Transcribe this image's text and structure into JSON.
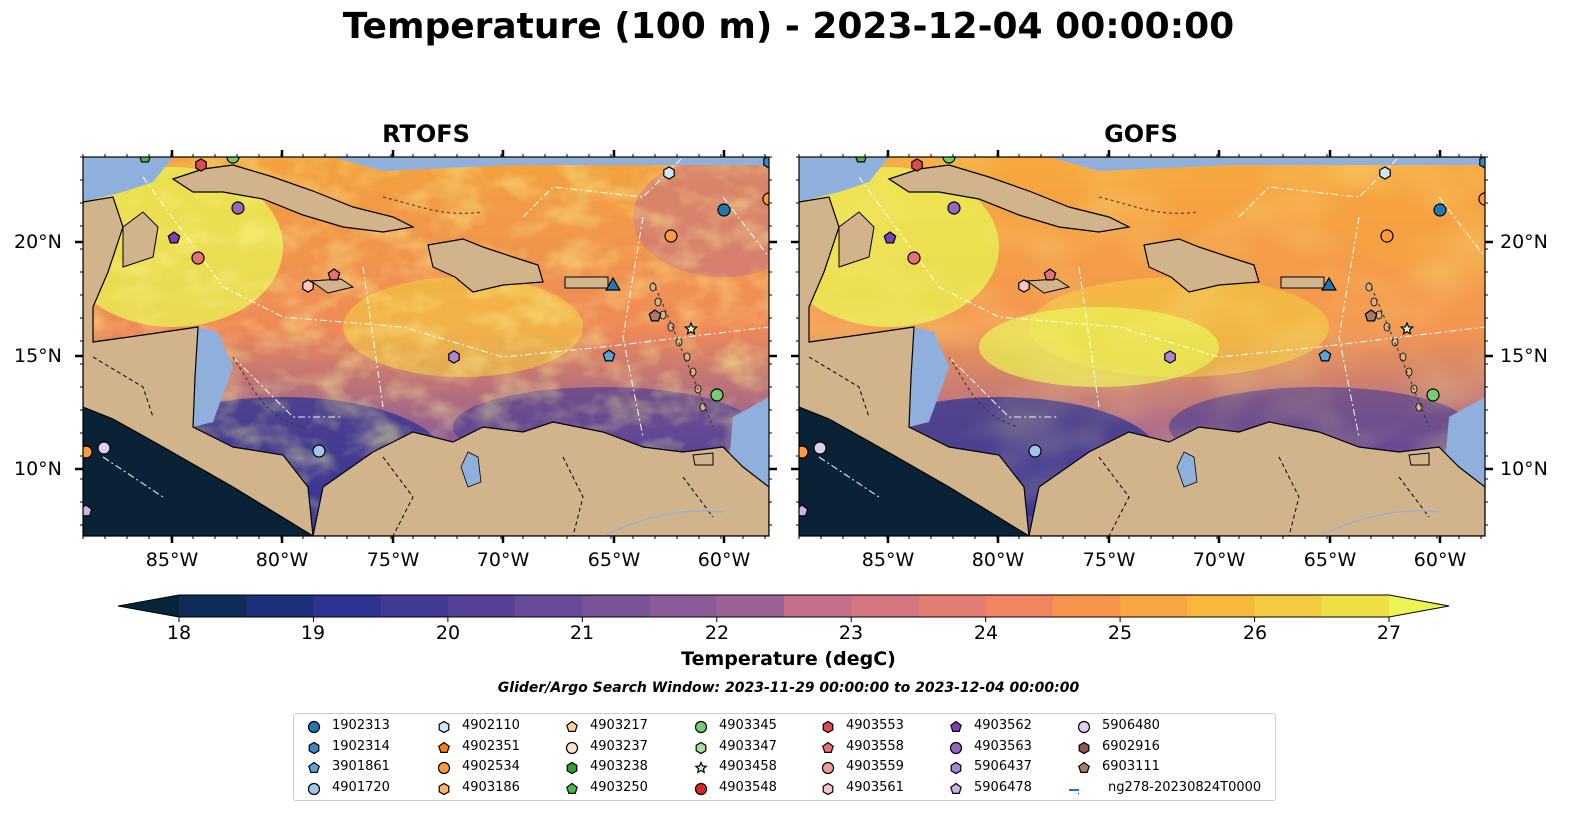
{
  "title": "Temperature (100 m) - 2023-12-04 00:00:00",
  "panels": [
    {
      "title": "RTOFS"
    },
    {
      "title": "GOFS"
    }
  ],
  "lat_labels": [
    "20°N",
    "15°N",
    "10°N"
  ],
  "lon_labels": [
    "85°W",
    "80°W",
    "75°W",
    "70°W",
    "65°W",
    "60°W"
  ],
  "colorbar": {
    "label": "Temperature (degC)",
    "ticks": [
      "18",
      "19",
      "20",
      "21",
      "22",
      "23",
      "24",
      "25",
      "26",
      "27"
    ],
    "colors": [
      "#06243a",
      "#0e2c57",
      "#1c3178",
      "#2e3391",
      "#423995",
      "#554196",
      "#674b98",
      "#795399",
      "#8b5b98",
      "#9d6295",
      "#b06991",
      "#c46f8a",
      "#d57580",
      "#e37d71",
      "#ef8660",
      "#f6944c",
      "#f9a540",
      "#f8b83c",
      "#f4cb3f",
      "#eedf44",
      "#e8f553"
    ]
  },
  "search_window": "Glider/Argo Search Window: 2023-11-29 00:00:00 to 2023-12-04 00:00:00",
  "legend": [
    {
      "label": "1902313",
      "shape": "circle",
      "color": "#1f77b4"
    },
    {
      "label": "1902314",
      "shape": "hexagon",
      "color": "#3b87c4"
    },
    {
      "label": "3901861",
      "shape": "pentagon",
      "color": "#5ba3d6"
    },
    {
      "label": "4901720",
      "shape": "circle",
      "color": "#9ec8ea"
    },
    {
      "label": "4902110",
      "shape": "hexagon",
      "color": "#cfe7f7"
    },
    {
      "label": "4902351",
      "shape": "pentagon",
      "color": "#ff7f0e"
    },
    {
      "label": "4902534",
      "shape": "circle",
      "color": "#ff9b3d"
    },
    {
      "label": "4903186",
      "shape": "hexagon",
      "color": "#ffb56e"
    },
    {
      "label": "4903217",
      "shape": "pentagon",
      "color": "#ffcf9e"
    },
    {
      "label": "4903237",
      "shape": "circle",
      "color": "#ffe3c8"
    },
    {
      "label": "4903238",
      "shape": "hexagon",
      "color": "#2ca02c"
    },
    {
      "label": "4903250",
      "shape": "pentagon",
      "color": "#4cb84c"
    },
    {
      "label": "4903345",
      "shape": "circle",
      "color": "#76cc70"
    },
    {
      "label": "4903347",
      "shape": "hexagon",
      "color": "#a6e09a"
    },
    {
      "label": "4903458",
      "shape": "star",
      "color": "#d3f2cc"
    },
    {
      "label": "4903548",
      "shape": "circle",
      "color": "#d62728"
    },
    {
      "label": "4903553",
      "shape": "hexagon",
      "color": "#e04a4a"
    },
    {
      "label": "4903558",
      "shape": "pentagon",
      "color": "#e87070"
    },
    {
      "label": "4903559",
      "shape": "circle",
      "color": "#f19a9a"
    },
    {
      "label": "4903561",
      "shape": "hexagon",
      "color": "#f8c6c4"
    },
    {
      "label": "4903562",
      "shape": "pentagon",
      "color": "#7b3fb8"
    },
    {
      "label": "4903563",
      "shape": "circle",
      "color": "#9467bd"
    },
    {
      "label": "5906437",
      "shape": "hexagon",
      "color": "#ab86d2"
    },
    {
      "label": "5906478",
      "shape": "pentagon",
      "color": "#cdb2e6"
    },
    {
      "label": "5906480",
      "shape": "circle",
      "color": "#e2cdf2"
    },
    {
      "label": "6902916",
      "shape": "hexagon",
      "color": "#8c564b"
    },
    {
      "label": "6903111",
      "shape": "pentagon",
      "color": "#a87a6c"
    },
    {
      "label": "ng278-20230824T0000",
      "shape": "triangle-line",
      "color": "#1f77b4"
    }
  ],
  "colors": {
    "land": "#d2b48c",
    "shallow": "#8fb0dc",
    "deep_pacific": "#0a2236"
  }
}
